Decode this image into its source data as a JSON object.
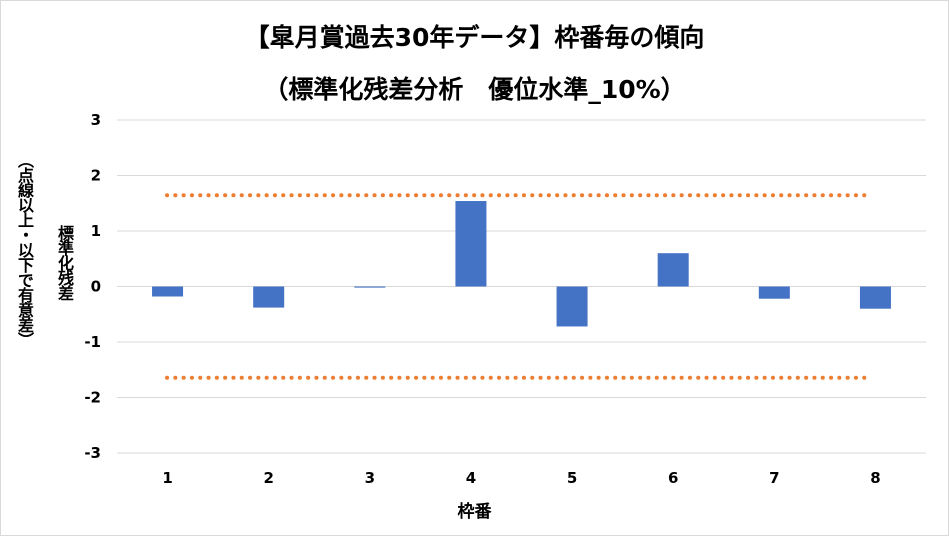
{
  "chart_data": {
    "type": "bar",
    "title": "【皐月賞過去30年データ】枠番毎の傾向",
    "subtitle": "（標準化残差分析　優位水準_10%）",
    "xlabel": "枠番",
    "ylabel": "標準化残差",
    "ylabel_note": "（点線以上・以下で有意差）",
    "categories": [
      "1",
      "2",
      "3",
      "4",
      "5",
      "6",
      "7",
      "8"
    ],
    "values": [
      -0.18,
      -0.38,
      -0.02,
      1.54,
      -0.72,
      0.6,
      -0.22,
      -0.4
    ],
    "ylim": [
      -3,
      3
    ],
    "yticks": [
      "3",
      "2",
      "1",
      "0",
      "-1",
      "-2",
      "-3"
    ],
    "threshold_upper": 1.645,
    "threshold_lower": -1.645,
    "grid": true,
    "legend": "none",
    "bar_color": "#4472C4",
    "threshold_color": "#ED7D31",
    "grid_color": "#D9D9D9"
  }
}
